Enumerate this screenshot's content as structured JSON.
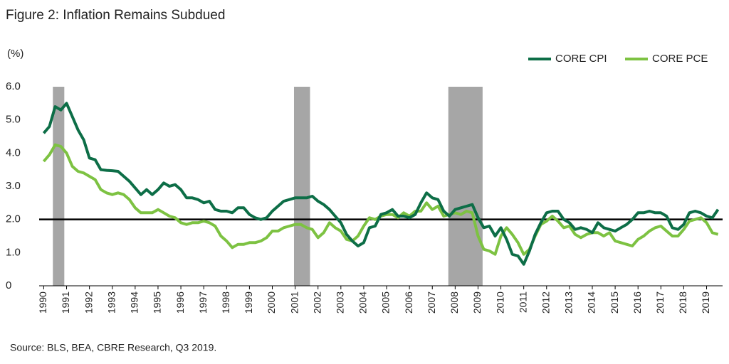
{
  "chart_data": {
    "type": "line",
    "title": "Figure 2: Inflation Remains Subdued",
    "y_label": "(%)",
    "source": "Source: BLS, BEA, CBRE Research, Q3 2019.",
    "x": [
      1990,
      1990.25,
      1990.5,
      1990.75,
      1991,
      1991.25,
      1991.5,
      1991.75,
      1992,
      1992.25,
      1992.5,
      1992.75,
      1993,
      1993.25,
      1993.5,
      1993.75,
      1994,
      1994.25,
      1994.5,
      1994.75,
      1995,
      1995.25,
      1995.5,
      1995.75,
      1996,
      1996.25,
      1996.5,
      1996.75,
      1997,
      1997.25,
      1997.5,
      1997.75,
      1998,
      1998.25,
      1998.5,
      1998.75,
      1999,
      1999.25,
      1999.5,
      1999.75,
      2000,
      2000.25,
      2000.5,
      2000.75,
      2001,
      2001.25,
      2001.5,
      2001.75,
      2002,
      2002.25,
      2002.5,
      2002.75,
      2003,
      2003.25,
      2003.5,
      2003.75,
      2004,
      2004.25,
      2004.5,
      2004.75,
      2005,
      2005.25,
      2005.5,
      2005.75,
      2006,
      2006.25,
      2006.5,
      2006.75,
      2007,
      2007.25,
      2007.5,
      2007.75,
      2008,
      2008.25,
      2008.5,
      2008.75,
      2009,
      2009.25,
      2009.5,
      2009.75,
      2010,
      2010.25,
      2010.5,
      2010.75,
      2011,
      2011.25,
      2011.5,
      2011.75,
      2012,
      2012.25,
      2012.5,
      2012.75,
      2013,
      2013.25,
      2013.5,
      2013.75,
      2014,
      2014.25,
      2014.5,
      2014.75,
      2015,
      2015.25,
      2015.5,
      2015.75,
      2016,
      2016.25,
      2016.5,
      2016.75,
      2017,
      2017.25,
      2017.5,
      2017.75,
      2018,
      2018.25,
      2018.5,
      2018.75,
      2019,
      2019.25,
      2019.5
    ],
    "series": [
      {
        "name": "CORE CPI",
        "color": "#0d6e47",
        "values": [
          4.6,
          4.8,
          5.4,
          5.3,
          5.5,
          5.1,
          4.7,
          4.4,
          3.85,
          3.8,
          3.5,
          3.48,
          3.47,
          3.45,
          3.3,
          3.15,
          2.95,
          2.75,
          2.9,
          2.75,
          2.9,
          3.1,
          3.0,
          3.05,
          2.9,
          2.65,
          2.65,
          2.6,
          2.5,
          2.55,
          2.3,
          2.25,
          2.25,
          2.2,
          2.35,
          2.35,
          2.15,
          2.05,
          2.0,
          2.05,
          2.25,
          2.4,
          2.55,
          2.6,
          2.65,
          2.65,
          2.65,
          2.7,
          2.55,
          2.45,
          2.3,
          2.1,
          1.9,
          1.55,
          1.35,
          1.2,
          1.3,
          1.75,
          1.8,
          2.15,
          2.2,
          2.3,
          2.1,
          2.1,
          2.05,
          2.15,
          2.5,
          2.8,
          2.65,
          2.6,
          2.25,
          2.1,
          2.3,
          2.35,
          2.4,
          2.45,
          2.05,
          1.75,
          1.8,
          1.5,
          1.75,
          1.4,
          0.95,
          0.9,
          0.65,
          1.05,
          1.55,
          1.9,
          2.2,
          2.25,
          2.25,
          2.0,
          1.9,
          1.7,
          1.75,
          1.7,
          1.6,
          1.9,
          1.75,
          1.7,
          1.65,
          1.75,
          1.85,
          2.0,
          2.2,
          2.2,
          2.25,
          2.2,
          2.2,
          2.1,
          1.75,
          1.7,
          1.85,
          2.2,
          2.25,
          2.2,
          2.1,
          2.05,
          2.3
        ]
      },
      {
        "name": "CORE PCE",
        "color": "#7dc242",
        "values": [
          3.75,
          3.95,
          4.25,
          4.2,
          4.0,
          3.6,
          3.45,
          3.4,
          3.3,
          3.2,
          2.9,
          2.8,
          2.75,
          2.8,
          2.75,
          2.6,
          2.35,
          2.2,
          2.2,
          2.2,
          2.3,
          2.2,
          2.1,
          2.05,
          1.9,
          1.85,
          1.9,
          1.9,
          1.95,
          1.9,
          1.8,
          1.5,
          1.35,
          1.15,
          1.25,
          1.25,
          1.3,
          1.3,
          1.35,
          1.45,
          1.65,
          1.65,
          1.75,
          1.8,
          1.85,
          1.85,
          1.75,
          1.7,
          1.45,
          1.6,
          1.9,
          1.75,
          1.65,
          1.4,
          1.35,
          1.5,
          1.8,
          2.05,
          2.0,
          2.1,
          2.15,
          2.15,
          2.05,
          2.2,
          2.1,
          2.25,
          2.25,
          2.5,
          2.3,
          2.4,
          2.1,
          2.15,
          2.2,
          2.15,
          2.25,
          2.2,
          1.5,
          1.1,
          1.05,
          0.95,
          1.5,
          1.75,
          1.55,
          1.3,
          0.95,
          1.1,
          1.5,
          1.85,
          1.95,
          2.1,
          1.95,
          1.75,
          1.8,
          1.55,
          1.45,
          1.55,
          1.6,
          1.6,
          1.5,
          1.6,
          1.35,
          1.3,
          1.25,
          1.2,
          1.4,
          1.5,
          1.65,
          1.75,
          1.8,
          1.65,
          1.5,
          1.5,
          1.7,
          1.95,
          2.0,
          2.05,
          1.9,
          1.6,
          1.55
        ]
      }
    ],
    "recessions": [
      [
        1990.4,
        1990.9
      ],
      [
        2000.95,
        2001.65
      ],
      [
        2007.7,
        2009.2
      ]
    ],
    "reference_line": 2,
    "xlim": [
      1989.8,
      2019.7
    ],
    "xticks": [
      1990,
      1991,
      1992,
      1993,
      1994,
      1995,
      1996,
      1997,
      1998,
      1999,
      2000,
      2001,
      2002,
      2003,
      2004,
      2005,
      2006,
      2007,
      2008,
      2009,
      2010,
      2011,
      2012,
      2013,
      2014,
      2015,
      2016,
      2017,
      2018,
      2019
    ],
    "ylim": [
      0,
      6
    ],
    "yticks": [
      0,
      {
        "value": 1,
        "label": "1.0"
      },
      {
        "value": 2,
        "label": "2.0"
      },
      {
        "value": 3,
        "label": "3.0"
      },
      {
        "value": 4,
        "label": "4.0"
      },
      {
        "value": 5,
        "label": "5.0"
      },
      {
        "value": 6,
        "label": "6.0"
      }
    ],
    "legend": "top-right"
  }
}
